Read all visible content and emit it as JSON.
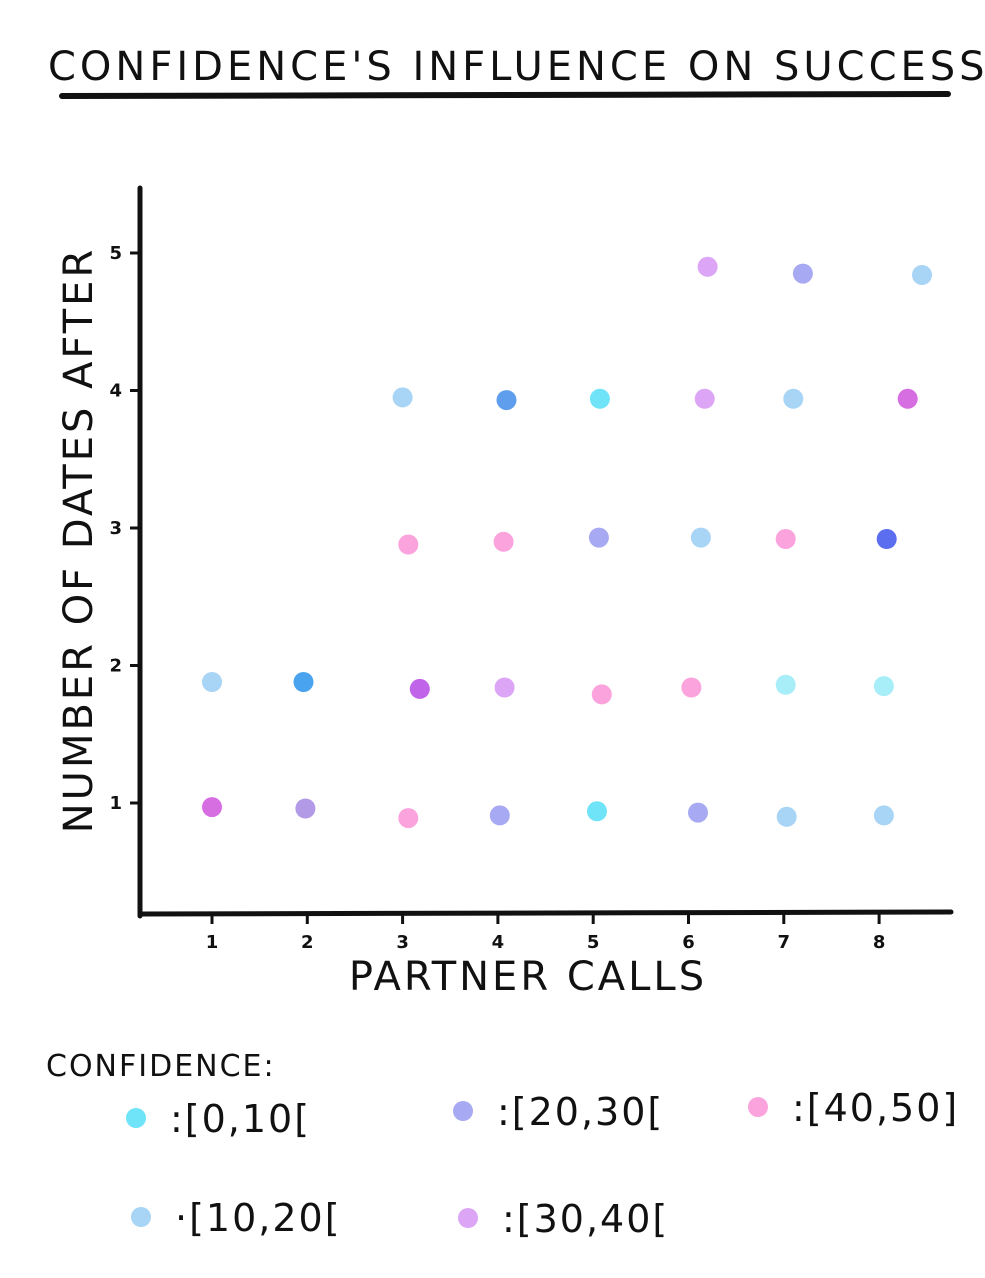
{
  "chart_data": {
    "type": "scatter",
    "title": "CONFIDENCE'S INFLUENCE ON SUCCESS",
    "xlabel": "PARTNER CALLS",
    "ylabel": "NUMBER OF DATES AFTER",
    "x_ticks": [
      "1",
      "2",
      "3",
      "4",
      "5",
      "6",
      "7",
      "8"
    ],
    "y_ticks": [
      "1",
      "2",
      "3",
      "4",
      "5"
    ],
    "grid": false,
    "legend": {
      "title": "CONFIDENCE:",
      "placement": "bottom",
      "entries": [
        {
          "label": ":[0,10[",
          "color": "#6fe3f7"
        },
        {
          "label": ":[20,30[",
          "color": "#a7a9f2"
        },
        {
          "label": ":[40,50]",
          "color": "#fba3dc"
        },
        {
          "label": "·[10,20[",
          "color": "#a8d4f6"
        },
        {
          "label": ":[30,40[",
          "color": "#dca5f5"
        }
      ]
    },
    "points": [
      {
        "x": 1.0,
        "y": 0.97,
        "color": "#d66ee2"
      },
      {
        "x": 1.0,
        "y": 1.88,
        "color": "#a8d4f6"
      },
      {
        "x": 1.98,
        "y": 0.96,
        "color": "#b39ae6"
      },
      {
        "x": 1.96,
        "y": 1.88,
        "color": "#4aa3ee"
      },
      {
        "x": 3.06,
        "y": 0.89,
        "color": "#fba3dc"
      },
      {
        "x": 3.18,
        "y": 1.83,
        "color": "#c064ea"
      },
      {
        "x": 3.06,
        "y": 2.88,
        "color": "#fba3dc"
      },
      {
        "x": 3.0,
        "y": 3.95,
        "color": "#a8d4f6"
      },
      {
        "x": 4.02,
        "y": 0.91,
        "color": "#a7a9f2"
      },
      {
        "x": 4.07,
        "y": 1.84,
        "color": "#dca5f5"
      },
      {
        "x": 4.06,
        "y": 2.9,
        "color": "#fba3dc"
      },
      {
        "x": 4.09,
        "y": 3.93,
        "color": "#5f9eed"
      },
      {
        "x": 5.04,
        "y": 0.94,
        "color": "#6fe3f7"
      },
      {
        "x": 5.09,
        "y": 1.79,
        "color": "#fba3dc"
      },
      {
        "x": 5.06,
        "y": 2.93,
        "color": "#a7a9f2"
      },
      {
        "x": 5.07,
        "y": 3.94,
        "color": "#6fe3f7"
      },
      {
        "x": 6.1,
        "y": 0.93,
        "color": "#a7a9f2"
      },
      {
        "x": 6.03,
        "y": 1.84,
        "color": "#fba3dc"
      },
      {
        "x": 6.13,
        "y": 2.93,
        "color": "#a8d4f6"
      },
      {
        "x": 6.17,
        "y": 3.94,
        "color": "#dca5f5"
      },
      {
        "x": 6.2,
        "y": 4.9,
        "color": "#dca5f5"
      },
      {
        "x": 7.03,
        "y": 0.9,
        "color": "#a8d4f6"
      },
      {
        "x": 7.02,
        "y": 1.86,
        "color": "#a8eef9"
      },
      {
        "x": 7.02,
        "y": 2.92,
        "color": "#fba3dc"
      },
      {
        "x": 7.1,
        "y": 3.94,
        "color": "#a8d4f6"
      },
      {
        "x": 7.2,
        "y": 4.85,
        "color": "#a7a9f2"
      },
      {
        "x": 8.05,
        "y": 0.91,
        "color": "#a8d4f6"
      },
      {
        "x": 8.05,
        "y": 1.85,
        "color": "#a8eef9"
      },
      {
        "x": 8.08,
        "y": 2.92,
        "color": "#5b6ef0"
      },
      {
        "x": 8.3,
        "y": 3.94,
        "color": "#d66ee2"
      },
      {
        "x": 8.45,
        "y": 4.84,
        "color": "#a8d4f6"
      }
    ]
  }
}
